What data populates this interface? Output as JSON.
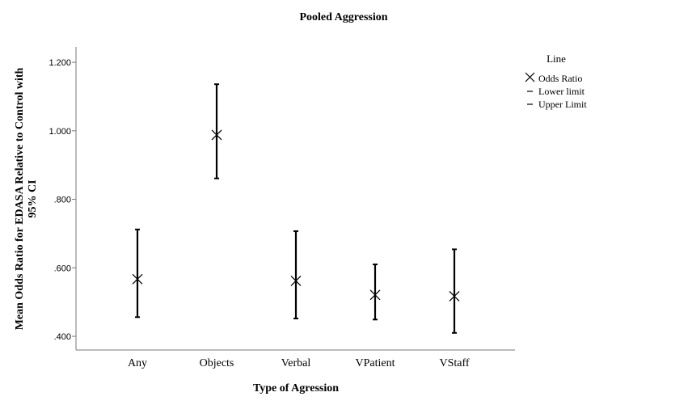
{
  "chart_data": {
    "type": "errorbar",
    "title": "Pooled Aggression",
    "xlabel": "Type of Agression",
    "ylabel_line1": "Mean Odds Ratio for EDASA Relative to Control with",
    "ylabel_line2": "95% CI",
    "categories": [
      "Any",
      "Objects",
      "Verbal",
      "VPatient",
      "VStaff"
    ],
    "yticks": [
      ".400",
      ".600",
      ".800",
      "1.000",
      "1.200"
    ],
    "ytick_values": [
      0.4,
      0.6,
      0.8,
      1.0,
      1.2
    ],
    "ylim": [
      0.36,
      1.245
    ],
    "grid": false,
    "legend_position": "right",
    "legend": {
      "title": "Line",
      "entries": [
        {
          "label": "Odds Ratio",
          "marker": "x"
        },
        {
          "label": "Lower limit",
          "marker": "dash"
        },
        {
          "label": "Upper Limit",
          "marker": "dash"
        }
      ]
    },
    "series": [
      {
        "name": "Odds Ratio",
        "values": [
          0.567,
          0.988,
          0.562,
          0.521,
          0.517
        ]
      },
      {
        "name": "Lower limit",
        "values": [
          0.456,
          0.861,
          0.452,
          0.449,
          0.41
        ]
      },
      {
        "name": "Upper Limit",
        "values": [
          0.712,
          1.136,
          0.707,
          0.61,
          0.654
        ]
      }
    ],
    "colors": {
      "marks": "#000000",
      "axis": "#777777"
    }
  }
}
